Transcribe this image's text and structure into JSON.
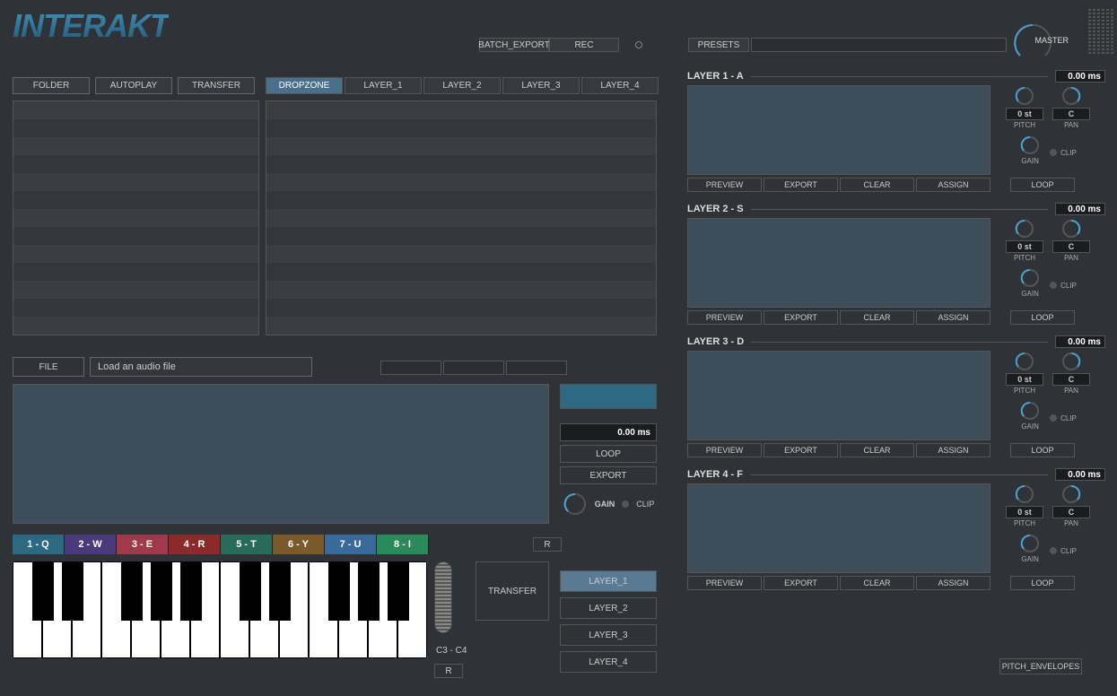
{
  "logo": "INTERAKT",
  "top": {
    "batch_export": "BATCH_EXPORT",
    "rec": "REC"
  },
  "presets": {
    "label": "PRESETS",
    "value": ""
  },
  "master": {
    "label": "MASTER"
  },
  "file_btns": [
    "FOLDER",
    "AUTOPLAY",
    "TRANSFER"
  ],
  "tabs": [
    "DROPZONE",
    "LAYER_1",
    "LAYER_2",
    "LAYER_3",
    "LAYER_4"
  ],
  "active_tab": 0,
  "file": {
    "btn": "FILE",
    "placeholder": "Load an audio file"
  },
  "side": {
    "ms": "0.00 ms",
    "loop": "LOOP",
    "export": "EXPORT",
    "gain": "GAIN",
    "clip": "CLIP"
  },
  "hotkeys": [
    {
      "label": "1 - Q",
      "color": "#2d6a82"
    },
    {
      "label": "2 - W",
      "color": "#4a3a7a"
    },
    {
      "label": "3 - E",
      "color": "#a03a4a"
    },
    {
      "label": "4 - R",
      "color": "#8a2a2a"
    },
    {
      "label": "5 - T",
      "color": "#2a6a5a"
    },
    {
      "label": "6 - Y",
      "color": "#7a5a2a"
    },
    {
      "label": "7 - U",
      "color": "#3a6a9a"
    },
    {
      "label": "8 - I",
      "color": "#2a8a5a"
    }
  ],
  "r_label": "R",
  "octave": "C3 - C4",
  "transfer": "TRANSFER",
  "layer_select": [
    "LAYER_1",
    "LAYER_2",
    "LAYER_3",
    "LAYER_4"
  ],
  "layer_select_active": 0,
  "layers": [
    {
      "title": "LAYER 1 - A",
      "ms": "0.00 ms",
      "pitch_val": "0 st",
      "pan_val": "C",
      "pitch": "PITCH",
      "pan": "PAN",
      "gain": "GAIN",
      "clip": "CLIP",
      "btns": [
        "PREVIEW",
        "EXPORT",
        "CLEAR",
        "ASSIGN"
      ],
      "loop": "LOOP"
    },
    {
      "title": "LAYER 2 - S",
      "ms": "0.00 ms",
      "pitch_val": "0 st",
      "pan_val": "C",
      "pitch": "PITCH",
      "pan": "PAN",
      "gain": "GAIN",
      "clip": "CLIP",
      "btns": [
        "PREVIEW",
        "EXPORT",
        "CLEAR",
        "ASSIGN"
      ],
      "loop": "LOOP"
    },
    {
      "title": "LAYER 3 - D",
      "ms": "0.00 ms",
      "pitch_val": "0 st",
      "pan_val": "C",
      "pitch": "PITCH",
      "pan": "PAN",
      "gain": "GAIN",
      "clip": "CLIP",
      "btns": [
        "PREVIEW",
        "EXPORT",
        "CLEAR",
        "ASSIGN"
      ],
      "loop": "LOOP"
    },
    {
      "title": "LAYER 4 - F",
      "ms": "0.00 ms",
      "pitch_val": "0 st",
      "pan_val": "C",
      "pitch": "PITCH",
      "pan": "PAN",
      "gain": "GAIN",
      "clip": "CLIP",
      "btns": [
        "PREVIEW",
        "EXPORT",
        "CLEAR",
        "ASSIGN"
      ],
      "loop": "LOOP"
    }
  ],
  "pitch_env": "PITCH_ENVELOPES",
  "colors": {
    "accent": "#4aa0d0",
    "panel": "#3e4d5a",
    "bg": "#2f3236"
  }
}
